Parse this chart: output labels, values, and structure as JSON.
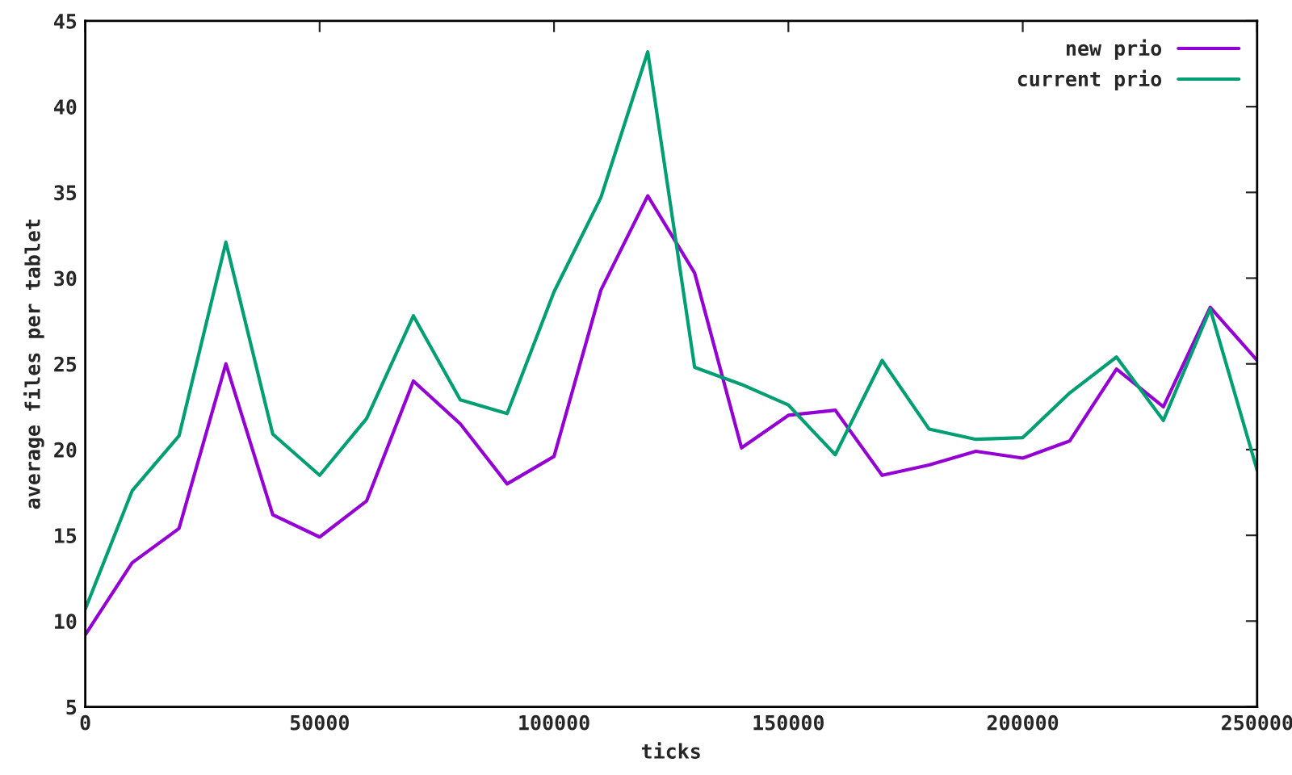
{
  "chart_data": {
    "type": "line",
    "xlabel": "ticks",
    "ylabel": "average files per tablet",
    "x": [
      0,
      10000,
      20000,
      30000,
      40000,
      50000,
      60000,
      70000,
      80000,
      90000,
      100000,
      110000,
      120000,
      130000,
      140000,
      150000,
      160000,
      170000,
      180000,
      190000,
      200000,
      210000,
      220000,
      230000,
      240000,
      250000
    ],
    "series": [
      {
        "name": "new prio",
        "color": "#9400d3",
        "values": [
          9.2,
          13.4,
          15.4,
          25.0,
          16.2,
          14.9,
          17.0,
          24.0,
          21.5,
          18.0,
          19.6,
          29.3,
          34.8,
          30.3,
          20.1,
          22.0,
          22.3,
          18.5,
          19.1,
          19.9,
          19.5,
          20.5,
          24.7,
          22.5,
          28.3,
          25.2
        ]
      },
      {
        "name": "current prio",
        "color": "#009e73",
        "values": [
          10.7,
          17.6,
          20.8,
          32.1,
          20.9,
          18.5,
          21.8,
          27.8,
          22.9,
          22.1,
          29.2,
          34.7,
          43.2,
          24.8,
          23.8,
          22.6,
          19.7,
          25.2,
          21.2,
          20.6,
          20.7,
          23.3,
          25.4,
          21.7,
          28.2,
          18.8
        ]
      }
    ],
    "xlim": [
      0,
      250000
    ],
    "xticks": [
      0,
      50000,
      100000,
      150000,
      200000,
      250000
    ],
    "ylim": [
      5,
      45
    ],
    "yticks": [
      5,
      10,
      15,
      20,
      25,
      30,
      35,
      40,
      45
    ],
    "legend": "top right",
    "grid": false,
    "marker": "none",
    "line_style": "solid"
  }
}
